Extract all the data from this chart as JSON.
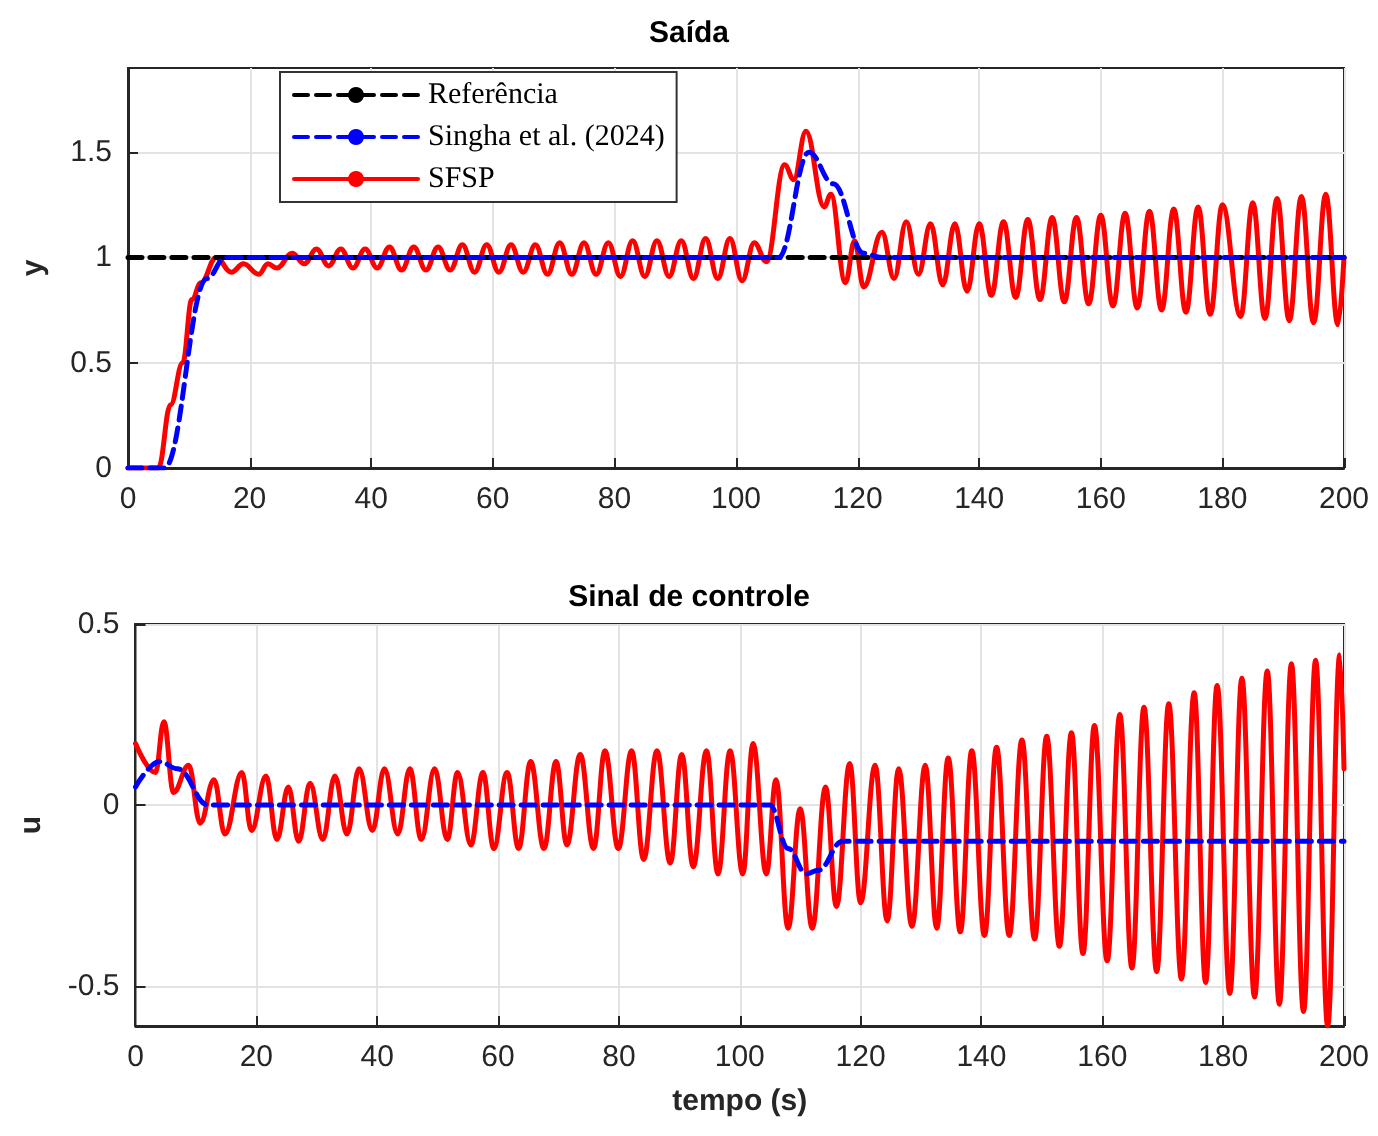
{
  "chart_data": [
    {
      "type": "line",
      "title": "Saída",
      "ylabel": "y",
      "xlim": [
        0,
        200
      ],
      "xticks": [
        0,
        20,
        40,
        60,
        80,
        100,
        120,
        140,
        160,
        180,
        200
      ],
      "ylim": [
        0,
        1.9
      ],
      "yticks": [
        0,
        0.5,
        1,
        1.5
      ],
      "grid": true,
      "legend": "top left",
      "marker": "none",
      "series": [
        {
          "name": "Referência",
          "color": "#000000",
          "line_style": "dashed",
          "x": [
            0,
            200
          ],
          "values": [
            1,
            1
          ]
        },
        {
          "name": "Singha et al. (2024)",
          "color": "#0000ff",
          "line_style": "dashed",
          "x": [
            0,
            6,
            13,
            16,
            107,
            112,
            116,
            121,
            124,
            200
          ],
          "values": [
            0,
            0,
            0.9,
            1.0,
            1.0,
            1.5,
            1.35,
            1.02,
            1.0,
            1.0
          ]
        },
        {
          "name": "SFSP",
          "color": "#ff0000",
          "line_style": "solid",
          "x": [
            0,
            5,
            7,
            9,
            10.5,
            12,
            14.5,
            17,
            19,
            21.5,
            23,
            24.5,
            27,
            29,
            31,
            33,
            35,
            37,
            39,
            41,
            43,
            45,
            47,
            49,
            51,
            53,
            55,
            57,
            59,
            61,
            63,
            65,
            67,
            69,
            71,
            73,
            75,
            77,
            79,
            81,
            83,
            85,
            87,
            89,
            91,
            93,
            95,
            97,
            99,
            101,
            103,
            105,
            108,
            109.5,
            111.5,
            114.5,
            115.6,
            118,
            119.5,
            121,
            124,
            126,
            128,
            130,
            132,
            134,
            136,
            138,
            140,
            142,
            144,
            146,
            148,
            150,
            152,
            154,
            156,
            158,
            160,
            162,
            164,
            166,
            168,
            170,
            172,
            174,
            176,
            178,
            180,
            183,
            185,
            187,
            189,
            191,
            193,
            195,
            197,
            199,
            200
          ],
          "values": [
            0,
            0,
            0.3,
            0.5,
            0.8,
            0.88,
            1.0,
            0.93,
            0.97,
            0.92,
            0.97,
            0.95,
            1.02,
            0.97,
            1.04,
            0.96,
            1.04,
            0.95,
            1.04,
            0.95,
            1.05,
            0.94,
            1.05,
            0.94,
            1.05,
            0.94,
            1.06,
            0.93,
            1.06,
            0.93,
            1.06,
            0.93,
            1.06,
            0.92,
            1.07,
            0.92,
            1.07,
            0.92,
            1.07,
            0.91,
            1.08,
            0.91,
            1.08,
            0.91,
            1.08,
            0.9,
            1.09,
            0.9,
            1.09,
            0.89,
            1.07,
            0.98,
            1.44,
            1.37,
            1.6,
            1.24,
            1.3,
            0.88,
            1.08,
            0.86,
            1.12,
            0.9,
            1.17,
            0.92,
            1.16,
            0.87,
            1.16,
            0.84,
            1.16,
            0.82,
            1.17,
            0.81,
            1.18,
            0.8,
            1.19,
            0.79,
            1.19,
            0.78,
            1.2,
            0.77,
            1.21,
            0.76,
            1.22,
            0.75,
            1.23,
            0.74,
            1.24,
            0.73,
            1.25,
            0.72,
            1.26,
            0.71,
            1.28,
            0.7,
            1.29,
            0.69,
            1.3,
            0.68,
            1.0
          ]
        }
      ]
    },
    {
      "type": "line",
      "title": "Sinal de controle",
      "xlabel": "tempo (s)",
      "ylabel": "u",
      "xlim": [
        0,
        200
      ],
      "xticks": [
        0,
        20,
        40,
        60,
        80,
        100,
        120,
        140,
        160,
        180,
        200
      ],
      "ylim": [
        -0.61,
        0.5
      ],
      "yticks": [
        -0.5,
        0,
        0.5
      ],
      "grid": true,
      "marker": "none",
      "series": [
        {
          "color": "#0000ff",
          "line_style": "dashed",
          "x": [
            0,
            4,
            7,
            12,
            105,
            108,
            111,
            113,
            117,
            200
          ],
          "values": [
            0.05,
            0.12,
            0.1,
            0,
            0,
            -0.12,
            -0.19,
            -0.18,
            -0.1,
            -0.1
          ]
        },
        {
          "color": "#ff0000",
          "line_style": "solid",
          "x": [
            0,
            3.3,
            4.7,
            6.3,
            8.8,
            10.7,
            13,
            14.8,
            17.6,
            19.2,
            21.6,
            23.4,
            25.3,
            27,
            28.9,
            31,
            33,
            35,
            37,
            39.2,
            41.2,
            43.4,
            45.4,
            47.3,
            49.5,
            51.6,
            53.3,
            55.5,
            57.5,
            59.3,
            61.5,
            63.4,
            65.4,
            67.6,
            69.6,
            71.4,
            73.6,
            75.8,
            77.7,
            79.9,
            82.1,
            84.1,
            86.3,
            88.5,
            90.4,
            92.3,
            94.5,
            96.4,
            98.4,
            100.5,
            102.2,
            104.4,
            106,
            108,
            110,
            112,
            114.2,
            116,
            118.2,
            120,
            122.4,
            124.4,
            126.3,
            128.5,
            130.7,
            132.6,
            134.5,
            136.5,
            138.4,
            140.5,
            142.5,
            144.6,
            146.7,
            148.8,
            150.8,
            152.9,
            154.9,
            156.8,
            158.7,
            160.8,
            162.9,
            164.9,
            166.9,
            169,
            171,
            173.1,
            175.2,
            177.1,
            179,
            181.1,
            183.1,
            185.2,
            187.3,
            189.3,
            191.3,
            193.3,
            195.3,
            197.3,
            199.3,
            200
          ],
          "values": [
            0.17,
            0.09,
            0.23,
            0.035,
            0.11,
            -0.05,
            0.07,
            -0.08,
            0.09,
            -0.07,
            0.08,
            -0.095,
            0.05,
            -0.1,
            0.06,
            -0.095,
            0.08,
            -0.08,
            0.1,
            -0.07,
            0.1,
            -0.08,
            0.1,
            -0.095,
            0.1,
            -0.095,
            0.09,
            -0.11,
            0.09,
            -0.12,
            0.09,
            -0.12,
            0.12,
            -0.12,
            0.12,
            -0.11,
            0.14,
            -0.12,
            0.15,
            -0.12,
            0.15,
            -0.15,
            0.15,
            -0.16,
            0.14,
            -0.17,
            0.15,
            -0.19,
            0.15,
            -0.19,
            0.17,
            -0.19,
            0.07,
            -0.34,
            -0.01,
            -0.34,
            0.05,
            -0.28,
            0.115,
            -0.27,
            0.11,
            -0.32,
            0.1,
            -0.335,
            0.11,
            -0.34,
            0.13,
            -0.35,
            0.15,
            -0.36,
            0.16,
            -0.36,
            0.18,
            -0.37,
            0.19,
            -0.39,
            0.2,
            -0.41,
            0.22,
            -0.43,
            0.25,
            -0.45,
            0.27,
            -0.46,
            0.28,
            -0.48,
            0.31,
            -0.49,
            0.33,
            -0.52,
            0.35,
            -0.53,
            0.37,
            -0.55,
            0.39,
            -0.57,
            0.4,
            -0.61,
            0.415,
            0.1
          ]
        }
      ]
    }
  ]
}
